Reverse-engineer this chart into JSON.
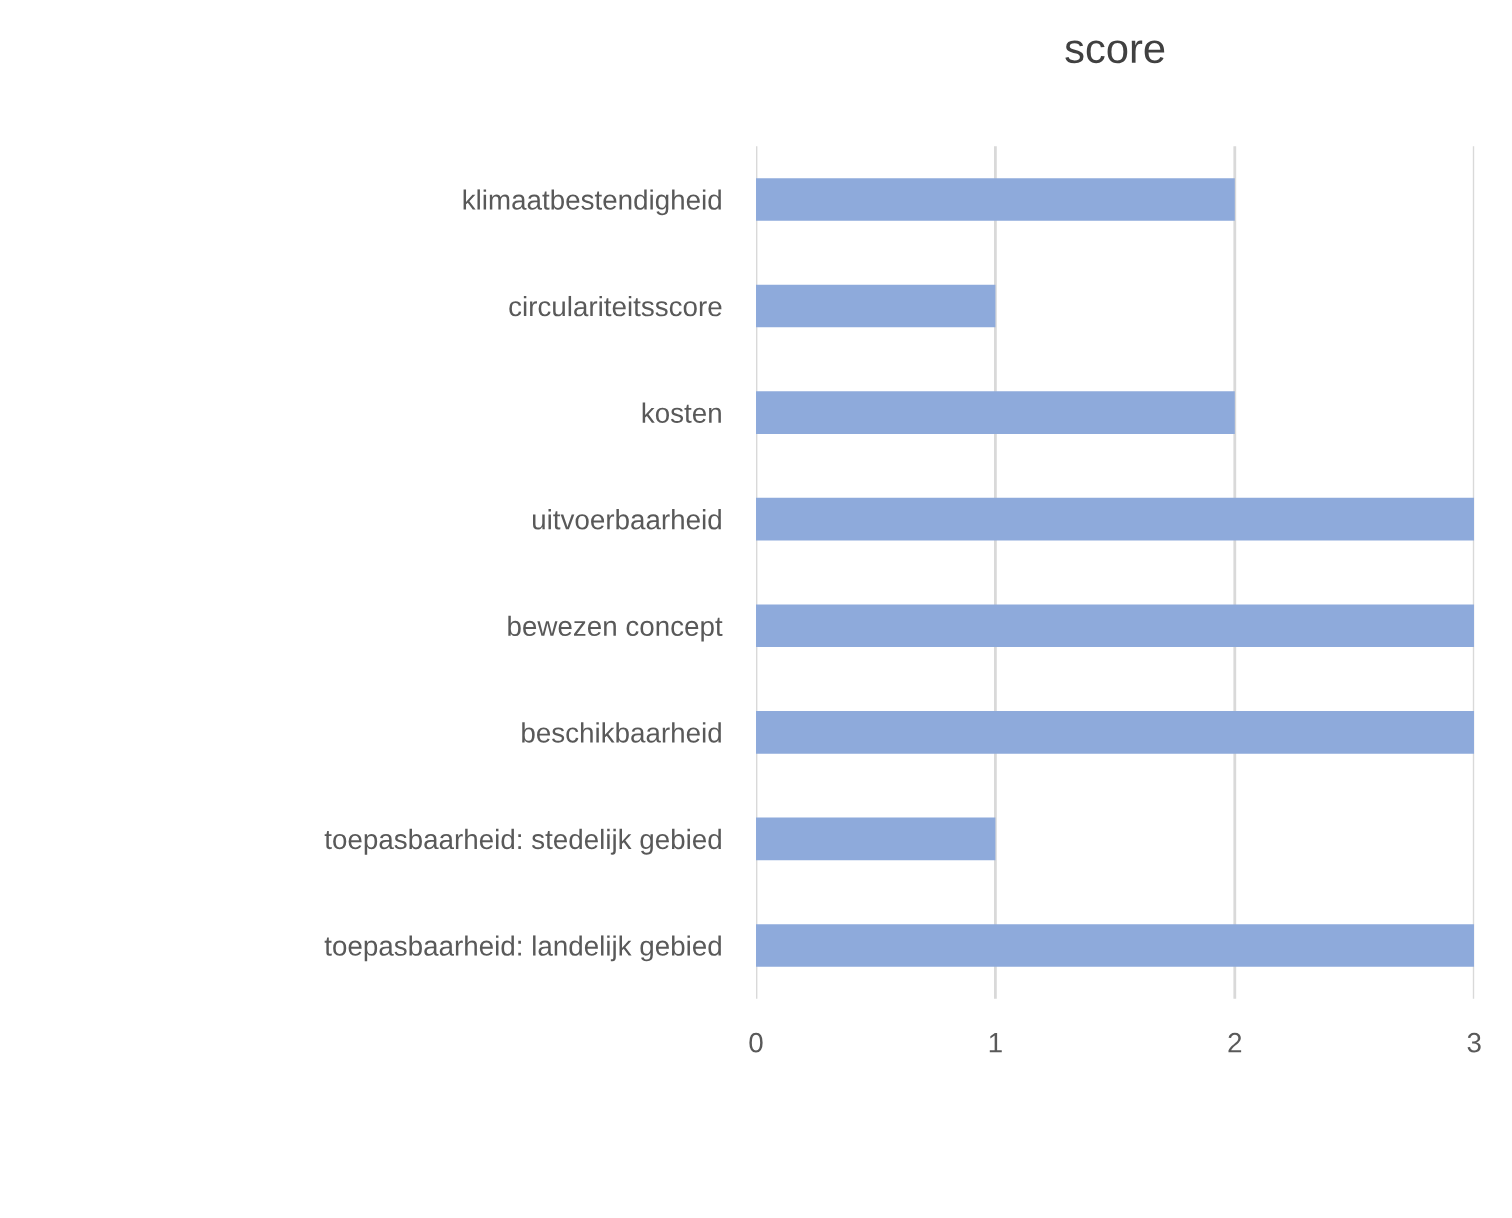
{
  "chart_data": {
    "type": "bar",
    "orientation": "horizontal",
    "title": "score",
    "categories": [
      "klimaatbestendigheid",
      "circulariteitsscore",
      "kosten",
      "uitvoerbaarheid",
      "bewezen concept",
      "beschikbaarheid",
      "toepasbaarheid: stedelijk gebied",
      "toepasbaarheid: landelijk gebied"
    ],
    "values": [
      2,
      1,
      2,
      3,
      3,
      3,
      1,
      3
    ],
    "color": "#8eaadb",
    "xlim": [
      0,
      3
    ],
    "xticks": [
      0,
      1,
      2,
      3
    ],
    "grid": "x"
  }
}
